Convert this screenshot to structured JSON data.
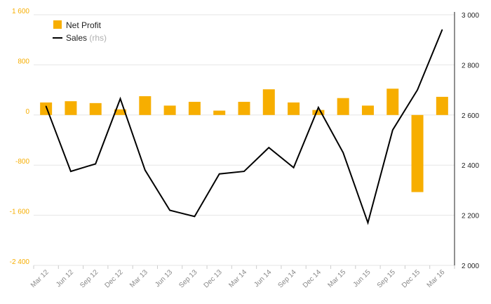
{
  "chart_data": {
    "type": "bar+line",
    "categories": [
      "Mar 12",
      "Jun 12",
      "Sep 12",
      "Dec 12",
      "Mar 13",
      "Jun 13",
      "Sep 13",
      "Dec 13",
      "Mar 14",
      "Jun 14",
      "Sep 14",
      "Dec 14",
      "Mar 15",
      "Jun 15",
      "Sep 15",
      "Dec 15",
      "Mar 16"
    ],
    "series": [
      {
        "name": "Net Profit",
        "type": "bar",
        "axis": "left",
        "color": "#F7AE00",
        "values": [
          200,
          220,
          190,
          90,
          300,
          150,
          210,
          70,
          210,
          410,
          200,
          80,
          270,
          150,
          420,
          -1230,
          290
        ]
      },
      {
        "name": "Sales",
        "name_suffix": "(rhs)",
        "type": "line",
        "axis": "right",
        "color": "#000000",
        "values": [
          2635,
          2375,
          2405,
          2665,
          2380,
          2220,
          2195,
          2365,
          2375,
          2470,
          2390,
          2630,
          2450,
          2170,
          2540,
          2700,
          2940
        ]
      }
    ],
    "y_left": {
      "min": -2400,
      "max": 1600,
      "ticks": [
        1600,
        800,
        0,
        -800,
        -1600,
        -2400
      ],
      "tick_labels": [
        "1 600",
        "800",
        "0",
        "-800",
        "-1 600",
        "-2 400"
      ],
      "color": "#F7AE00"
    },
    "y_right": {
      "min": 2000,
      "max": 3000,
      "ticks": [
        3000,
        2800,
        2600,
        2400,
        2200,
        2000
      ],
      "tick_labels": [
        "3 000",
        "2 800",
        "2 600",
        "2 400",
        "2 200",
        "2 000"
      ],
      "color": "#222222"
    },
    "grid": true,
    "legend_position": "top-left",
    "title": "",
    "xlabel": "",
    "ylabel": ""
  }
}
